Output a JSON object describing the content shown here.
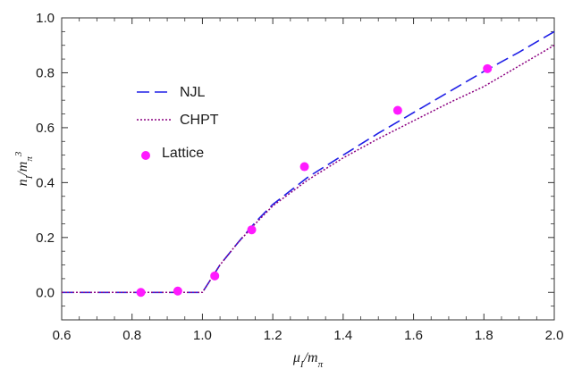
{
  "chart_data": {
    "type": "scatter",
    "title": "",
    "xlabel": "μI/mπ",
    "ylabel": "nI/mπ3",
    "xlim": [
      0.6,
      2.0
    ],
    "ylim": [
      -0.1,
      1.0
    ],
    "grid": false,
    "legend_position": "upper-left",
    "x_ticks": [
      "0.6",
      "0.8",
      "1.0",
      "1.2",
      "1.4",
      "1.6",
      "1.8",
      "2.0"
    ],
    "y_ticks": [
      "0.0",
      "0.2",
      "0.4",
      "0.6",
      "0.8",
      "1.0"
    ],
    "series": [
      {
        "name": "NJL",
        "style": "dashed-line",
        "color": "#1f1fe6",
        "x": [
          0.6,
          0.8,
          1.0,
          1.02,
          1.05,
          1.1,
          1.15,
          1.2,
          1.3,
          1.4,
          1.5,
          1.6,
          1.7,
          1.8,
          1.9,
          2.0
        ],
        "y": [
          0.0,
          0.0,
          0.0,
          0.04,
          0.1,
          0.18,
          0.255,
          0.32,
          0.42,
          0.5,
          0.58,
          0.655,
          0.73,
          0.805,
          0.875,
          0.95
        ]
      },
      {
        "name": "CHPT",
        "style": "dotted-line",
        "color": "#8b0080",
        "x": [
          0.6,
          0.8,
          1.0,
          1.02,
          1.05,
          1.1,
          1.15,
          1.2,
          1.3,
          1.4,
          1.5,
          1.6,
          1.7,
          1.8,
          1.9,
          2.0
        ],
        "y": [
          0.0,
          0.0,
          0.0,
          0.04,
          0.1,
          0.18,
          0.25,
          0.315,
          0.41,
          0.49,
          0.56,
          0.625,
          0.69,
          0.75,
          0.825,
          0.9
        ]
      },
      {
        "name": "Lattice",
        "style": "markers",
        "color": "#ff1aff",
        "x": [
          0.825,
          0.93,
          1.035,
          1.14,
          1.29,
          1.555,
          1.81
        ],
        "y": [
          0.0,
          0.005,
          0.06,
          0.228,
          0.458,
          0.663,
          0.815
        ]
      }
    ]
  }
}
